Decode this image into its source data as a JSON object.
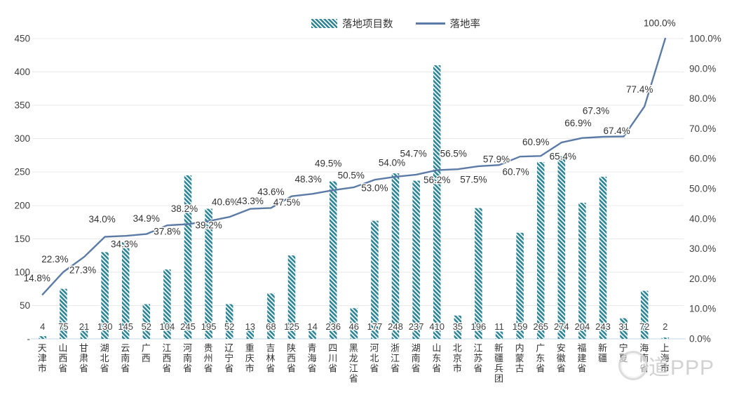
{
  "legend": {
    "bars_label": "落地项目数",
    "line_label": "落地率"
  },
  "watermark": {
    "text": "道PPP"
  },
  "colors": {
    "bar_teal": "#2b8495",
    "line_blue": "#5b7ba6",
    "gridline": "#e9e9e9",
    "axis_line": "#c5d5e4",
    "axis_text": "#404040",
    "label_text": "#333333",
    "watermark_gray": "#c9c9c9"
  },
  "chart_data": {
    "type": "bar+line",
    "title": "",
    "xlabel": "",
    "ylabel_left": "",
    "ylabel_right": "",
    "grid": "horizontal",
    "legend_position": "top-center",
    "categories": [
      "天津市",
      "山西省",
      "甘肃省",
      "湖北省",
      "云南省",
      "广西",
      "江西省",
      "河南省",
      "贵州省",
      "辽宁省",
      "重庆市",
      "吉林省",
      "陕西省",
      "青海省",
      "四川省",
      "黑龙江省",
      "河北省",
      "浙江省",
      "湖南省",
      "山东省",
      "北京市",
      "江苏省",
      "新疆兵团",
      "内蒙古",
      "广东省",
      "安徽省",
      "福建省",
      "新疆",
      "宁夏",
      "海南省",
      "上海市"
    ],
    "series": [
      {
        "name": "落地项目数",
        "type": "bar",
        "axis": "left",
        "values": [
          4,
          75,
          21,
          130,
          145,
          52,
          104,
          245,
          195,
          52,
          13,
          68,
          125,
          14,
          236,
          46,
          177,
          248,
          237,
          410,
          35,
          196,
          11,
          159,
          265,
          274,
          204,
          243,
          31,
          72,
          2
        ]
      },
      {
        "name": "落地率",
        "type": "line",
        "axis": "right",
        "unit": "%",
        "values": [
          14.8,
          22.3,
          27.3,
          34.0,
          34.3,
          34.9,
          37.8,
          38.2,
          39.2,
          40.6,
          43.3,
          43.6,
          47.5,
          48.3,
          49.5,
          50.5,
          53.0,
          54.0,
          54.7,
          56.2,
          56.5,
          57.5,
          57.9,
          60.7,
          60.9,
          65.4,
          66.9,
          67.3,
          67.4,
          77.4,
          100.0
        ],
        "labels": [
          "14.8%",
          "22.3%",
          "27.3%",
          "34.0%",
          "34.3%",
          "34.9%",
          "37.8%",
          "38.2%",
          "39.2%",
          "40.6%",
          "43.3%",
          "43.6%",
          "47.5%",
          "48.3%",
          "49.5%",
          "50.5%",
          "53.0%",
          "54.0%",
          "54.7%",
          "56.2%",
          "56.5%",
          "57.5%",
          "57.9%",
          "60.7%",
          "60.9%",
          "65.4%",
          "66.9%",
          "67.3%",
          "67.4%",
          "77.4%",
          "100.0%"
        ]
      }
    ],
    "left_axis": {
      "min": 0,
      "max": 450,
      "step": 50,
      "tick_labels": [
        "-",
        "50",
        "100",
        "150",
        "200",
        "250",
        "300",
        "350",
        "400",
        "450"
      ]
    },
    "right_axis": {
      "min": 0,
      "max": 100,
      "step": 10,
      "tick_labels": [
        "0.0%",
        "10.0%",
        "20.0%",
        "30.0%",
        "40.0%",
        "50.0%",
        "60.0%",
        "70.0%",
        "80.0%",
        "90.0%",
        "100.0%"
      ]
    },
    "rate_label_dy": [
      -23,
      -18,
      19,
      -25,
      12,
      -22,
      9,
      -22,
      6,
      -21,
      -11,
      -23,
      9,
      -21,
      -38,
      -17,
      12,
      -20,
      -30,
      14,
      -22,
      19,
      -8,
      22,
      -20,
      20,
      -21,
      -37,
      -8,
      -24,
      -22
    ],
    "rate_label_dx": [
      -8,
      -12,
      -2,
      -4,
      -2,
      0,
      0,
      -5,
      0,
      -6,
      0,
      0,
      -7,
      -6,
      -7,
      -4,
      0,
      -5,
      -4,
      0,
      -6,
      -7,
      -4,
      -6,
      -7,
      2,
      -6,
      -10,
      -10,
      -7,
      -8
    ]
  }
}
